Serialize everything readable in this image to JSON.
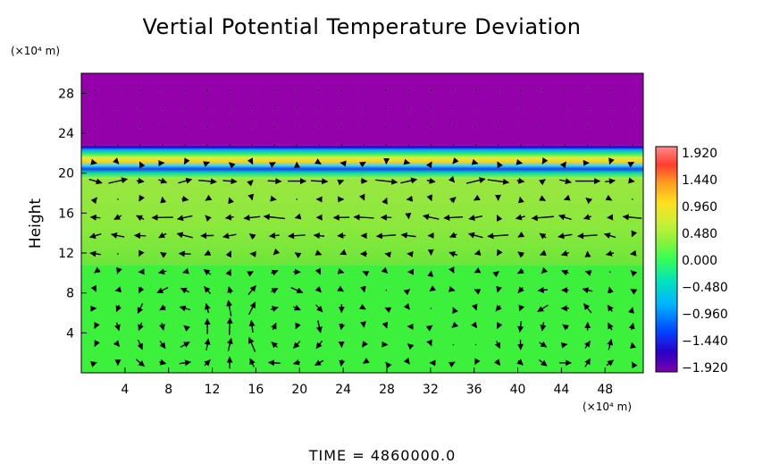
{
  "chart_data": {
    "type": "heatmap",
    "title": "Vertial Potential Temperature Deviation",
    "ylabel": "Height",
    "x_unit_label": "(×10⁴ m)",
    "y_unit_label": "(×10⁴ m)",
    "footer": "TIME  =  4860000.0",
    "xlim": [
      0,
      51.5
    ],
    "ylim": [
      0,
      30
    ],
    "x_ticks": [
      4,
      8,
      12,
      16,
      20,
      24,
      28,
      32,
      36,
      40,
      44,
      48
    ],
    "y_ticks": [
      4,
      8,
      12,
      16,
      20,
      24,
      28
    ],
    "colorbar": {
      "ticks": [
        1.92,
        1.44,
        0.96,
        0.48,
        0.0,
        -0.48,
        -0.96,
        -1.44,
        -1.92
      ],
      "tick_labels": [
        "1.920",
        "1.440",
        "0.960",
        "0.480",
        "0.000",
        "−0.480",
        "−0.960",
        "−1.440",
        "−1.920"
      ],
      "range": [
        -1.92,
        1.92
      ],
      "colors_low_to_high": [
        "#7a00a8",
        "#2a00c8",
        "#0044ff",
        "#00b4ff",
        "#00e2c0",
        "#33ff55",
        "#8cf23a",
        "#c8f036",
        "#ffe020",
        "#ff9c20",
        "#ff3c30",
        "#ff8a8a"
      ]
    },
    "field_layers": [
      {
        "label": "upper layer",
        "y_range": [
          22.8,
          30
        ],
        "value": -1.92,
        "color": "#9400aa"
      },
      {
        "label": "inversion band",
        "y_range": [
          19.5,
          22.8
        ],
        "value_range": [
          -1.4,
          1.2
        ]
      },
      {
        "label": "middle layer",
        "y_range": [
          10.8,
          19.5
        ],
        "value": 0.3,
        "color": "#8ce83c"
      },
      {
        "label": "lower layer",
        "y_range": [
          0,
          10.8
        ],
        "value": 0.05,
        "color": "#3cf03c"
      }
    ],
    "vector_field": {
      "description": "velocity vectors",
      "circulation_cells": [
        {
          "center_x": 9,
          "center_y": 4.5,
          "sense": "counter-clockwise"
        },
        {
          "center_x": 18.5,
          "center_y": 4.5,
          "sense": "clockwise"
        },
        {
          "center_x": 44,
          "center_y": 4.0,
          "sense": "counter-clockwise"
        }
      ],
      "jets": [
        {
          "y": 13.2,
          "direction": "west"
        },
        {
          "y": 15.3,
          "direction": "west"
        },
        {
          "y": 19.3,
          "direction": "east"
        }
      ]
    }
  }
}
